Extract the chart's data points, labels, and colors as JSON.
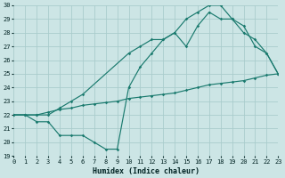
{
  "background_color": "#cce5e5",
  "grid_color": "#aacccc",
  "line_color": "#1a7a6e",
  "xlabel": "Humidex (Indice chaleur)",
  "ylim": [
    19,
    30
  ],
  "xlim": [
    0,
    23
  ],
  "yticks": [
    19,
    20,
    21,
    22,
    23,
    24,
    25,
    26,
    27,
    28,
    29,
    30
  ],
  "xticks": [
    0,
    1,
    2,
    3,
    4,
    5,
    6,
    7,
    8,
    9,
    10,
    11,
    12,
    13,
    14,
    15,
    16,
    17,
    18,
    19,
    20,
    21,
    22,
    23
  ],
  "line1_x": [
    0,
    1,
    2,
    3,
    4,
    5,
    6,
    7,
    8,
    9,
    10,
    11,
    12,
    13,
    14,
    15,
    16,
    17,
    18,
    19,
    20,
    21,
    22,
    23
  ],
  "line1_y": [
    22.0,
    22.0,
    22.0,
    22.2,
    22.4,
    22.5,
    22.7,
    22.8,
    22.9,
    23.0,
    23.2,
    23.3,
    23.4,
    23.5,
    23.6,
    23.8,
    24.0,
    24.2,
    24.3,
    24.4,
    24.5,
    24.7,
    24.9,
    25.0
  ],
  "line2_x": [
    0,
    1,
    2,
    3,
    4,
    5,
    6,
    7,
    8,
    9,
    10,
    11,
    12,
    13,
    14,
    15,
    16,
    17,
    18,
    19,
    20,
    21,
    22,
    23
  ],
  "line2_y": [
    22.0,
    22.0,
    21.5,
    21.5,
    20.5,
    20.5,
    20.5,
    20.0,
    19.5,
    19.5,
    24.0,
    25.5,
    26.5,
    27.5,
    28.0,
    27.0,
    28.5,
    29.5,
    29.0,
    29.0,
    28.0,
    27.5,
    26.5,
    25.0
  ],
  "line3_x": [
    0,
    1,
    2,
    3,
    4,
    5,
    6,
    10,
    11,
    12,
    13,
    14,
    15,
    16,
    17,
    18,
    19,
    20,
    21,
    22,
    23
  ],
  "line3_y": [
    22.0,
    22.0,
    22.0,
    22.0,
    22.5,
    23.0,
    23.5,
    26.5,
    27.0,
    27.5,
    27.5,
    28.0,
    29.0,
    29.5,
    30.0,
    30.0,
    29.0,
    28.5,
    27.0,
    26.5,
    25.0
  ]
}
